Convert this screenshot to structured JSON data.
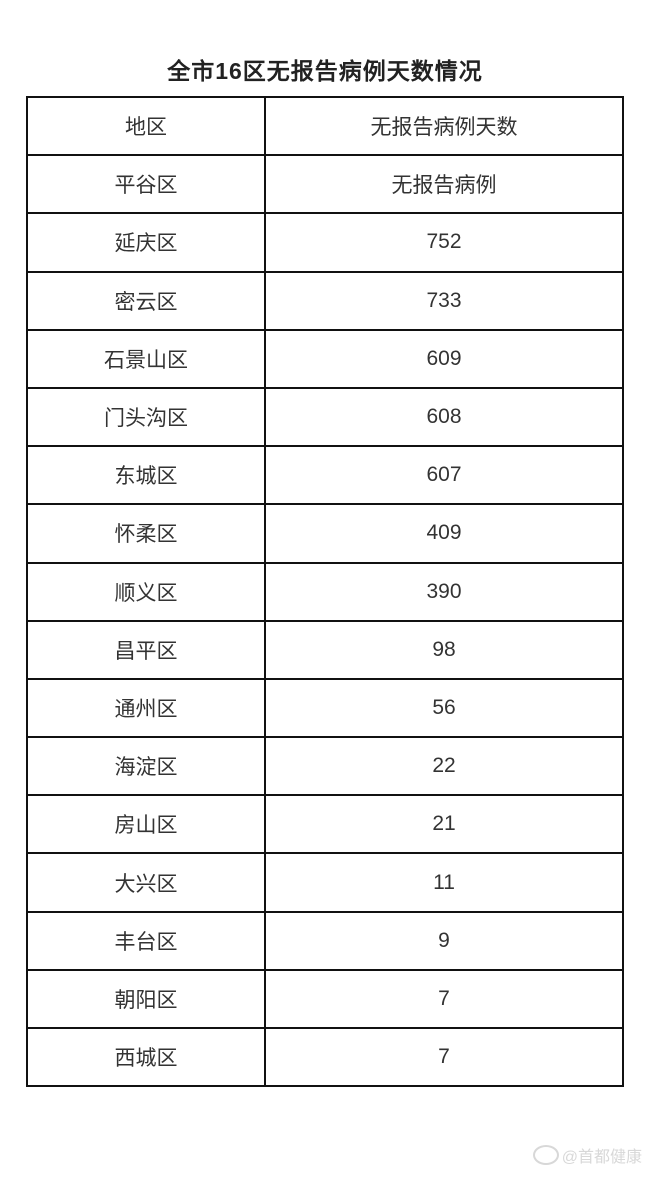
{
  "title": "全市16区无报告病例天数情况",
  "table": {
    "headers": [
      "地区",
      "无报告病例天数"
    ],
    "rows": [
      [
        "平谷区",
        "无报告病例"
      ],
      [
        "延庆区",
        "752"
      ],
      [
        "密云区",
        "733"
      ],
      [
        "石景山区",
        "609"
      ],
      [
        "门头沟区",
        "608"
      ],
      [
        "东城区",
        "607"
      ],
      [
        "怀柔区",
        "409"
      ],
      [
        "顺义区",
        "390"
      ],
      [
        "昌平区",
        "98"
      ],
      [
        "通州区",
        "56"
      ],
      [
        "海淀区",
        "22"
      ],
      [
        "房山区",
        "21"
      ],
      [
        "大兴区",
        "11"
      ],
      [
        "丰台区",
        "9"
      ],
      [
        "朝阳区",
        "7"
      ],
      [
        "西城区",
        "7"
      ]
    ]
  },
  "watermark": {
    "text": "@首都健康",
    "icon": "weibo-icon"
  }
}
